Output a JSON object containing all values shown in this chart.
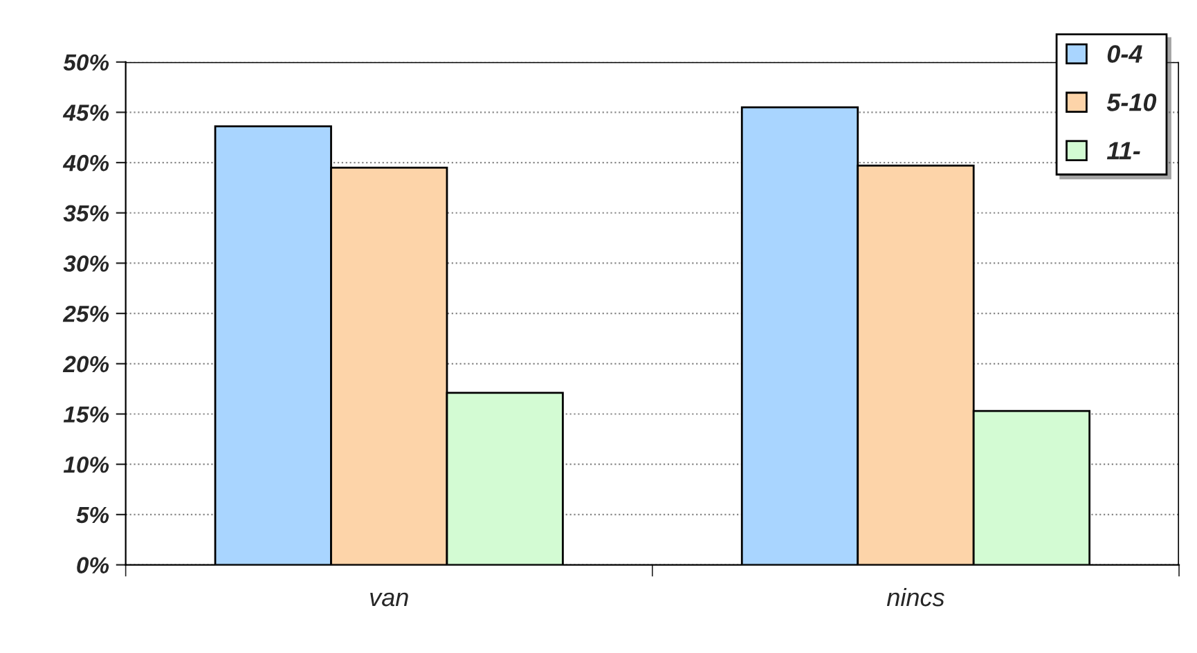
{
  "chart_data": {
    "type": "bar",
    "categories": [
      "van",
      "nincs"
    ],
    "series": [
      {
        "name": "0-4",
        "color": "#a9d5ff",
        "values": [
          43.6,
          45.5
        ]
      },
      {
        "name": "5-10",
        "color": "#fdd4a9",
        "values": [
          39.5,
          39.7
        ]
      },
      {
        "name": "11-",
        "color": "#d3fbd3",
        "values": [
          17.1,
          15.3
        ]
      }
    ],
    "ylim": [
      0,
      50
    ],
    "yticks": [
      {
        "value": 0,
        "label": "0%"
      },
      {
        "value": 5,
        "label": "5%"
      },
      {
        "value": 10,
        "label": "10%"
      },
      {
        "value": 15,
        "label": "15%"
      },
      {
        "value": 20,
        "label": "20%"
      },
      {
        "value": 25,
        "label": "25%"
      },
      {
        "value": 30,
        "label": "30%"
      },
      {
        "value": 35,
        "label": "35%"
      },
      {
        "value": 40,
        "label": "40%"
      },
      {
        "value": 45,
        "label": "45%"
      },
      {
        "value": 50,
        "label": "50%"
      }
    ],
    "grid": "y",
    "legend": "top right"
  }
}
